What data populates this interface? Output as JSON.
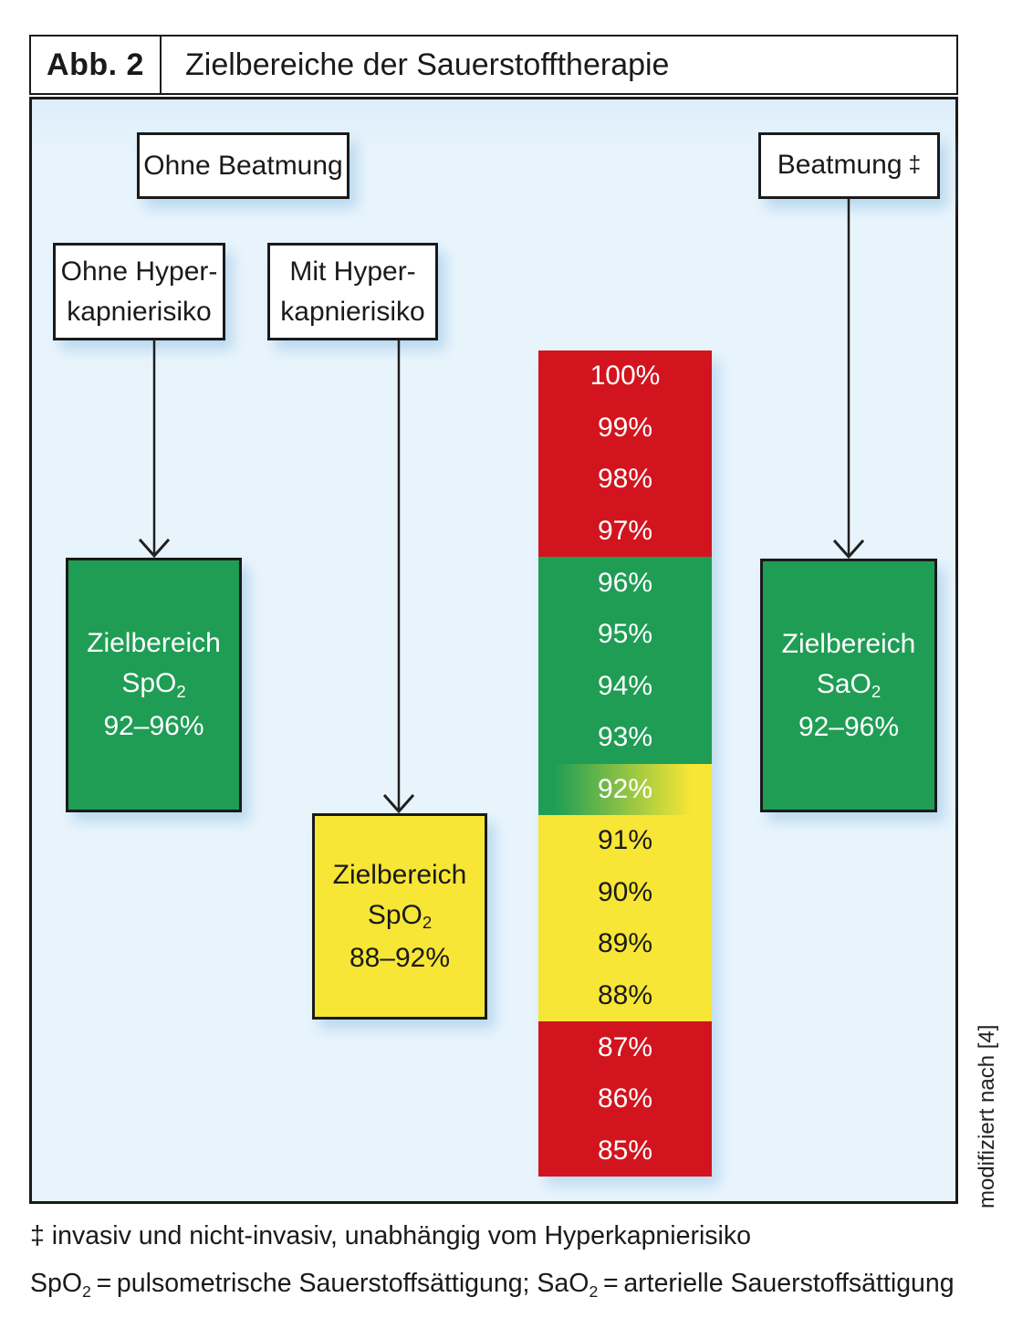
{
  "figure": {
    "label": "Abb. 2",
    "title": "Zielbereiche der Sauerstofftherapie"
  },
  "nodes": {
    "ohne_beatmung": {
      "label": "Ohne Beatmung"
    },
    "beatmung": {
      "label": "Beatmung",
      "dagger": "‡"
    },
    "ohne_hyper": {
      "line1": "Ohne Hyper-",
      "line2": "kapnierisiko"
    },
    "mit_hyper": {
      "line1": "Mit Hyper-",
      "line2": "kapnierisiko"
    }
  },
  "targets": {
    "left": {
      "line1": "Zielbereich",
      "formula_main": "SpO",
      "formula_sub": "2",
      "range": "92–96%"
    },
    "middle": {
      "line1": "Zielbereich",
      "formula_main": "SpO",
      "formula_sub": "2",
      "range": "88–92%"
    },
    "right": {
      "line1": "Zielbereich",
      "formula_main": "SaO",
      "formula_sub": "2",
      "range": "92–96%"
    }
  },
  "scale": {
    "rows": [
      {
        "label": "100%",
        "zone": "red",
        "text": "light"
      },
      {
        "label": "99%",
        "zone": "red",
        "text": "light"
      },
      {
        "label": "98%",
        "zone": "red",
        "text": "light"
      },
      {
        "label": "97%",
        "zone": "red",
        "text": "light"
      },
      {
        "label": "96%",
        "zone": "green",
        "text": "light"
      },
      {
        "label": "95%",
        "zone": "green",
        "text": "light"
      },
      {
        "label": "94%",
        "zone": "green",
        "text": "light"
      },
      {
        "label": "93%",
        "zone": "green",
        "text": "light"
      },
      {
        "label": "92%",
        "zone": "gradient",
        "text": "light"
      },
      {
        "label": "91%",
        "zone": "yellow",
        "text": "dark"
      },
      {
        "label": "90%",
        "zone": "yellow",
        "text": "dark"
      },
      {
        "label": "89%",
        "zone": "yellow",
        "text": "dark"
      },
      {
        "label": "88%",
        "zone": "yellow",
        "text": "dark"
      },
      {
        "label": "87%",
        "zone": "red",
        "text": "light"
      },
      {
        "label": "86%",
        "zone": "red",
        "text": "light"
      },
      {
        "label": "85%",
        "zone": "red",
        "text": "light"
      }
    ]
  },
  "footnotes": {
    "line1": "‡ invasiv und nicht-invasiv, unabhängig vom Hyperkapnierisiko",
    "line2": {
      "p1": "SpO",
      "sub1": "2",
      "p2": " = pulsometrische Sauerstoffsättigung; SaO",
      "sub2": "2",
      "p3": " = arterielle Sauerstoffsättigung"
    }
  },
  "credit": "modifiziert nach [4]",
  "colors": {
    "red": "#d2141e",
    "green": "#1f9d55",
    "yellow": "#f7e635",
    "panel_bg": "#e8f4fc",
    "dark_text": "#1a1a1a",
    "light_text": "#ffffff"
  }
}
